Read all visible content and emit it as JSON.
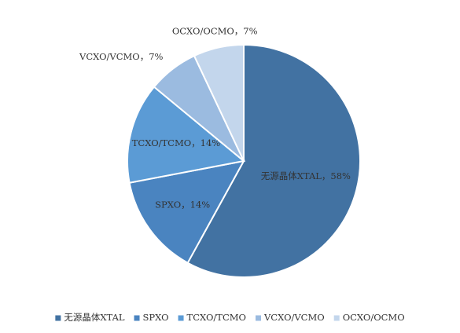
{
  "chart_data": {
    "type": "pie",
    "categories": [
      "无源晶体XTAL",
      "SPXO",
      "TCXO/TCMO",
      "VCXO/VCMO",
      "OCXO/OCMO"
    ],
    "values": [
      58,
      14,
      14,
      7,
      7
    ],
    "value_labels": [
      "无源晶体XTAL，58%",
      "SPXO，14%",
      "TCXO/TCMO，14%",
      "VCXO/VCMO，7%",
      "OCXO/OCMO，7%"
    ],
    "colors": [
      "#4272a2",
      "#4a84c0",
      "#5b9bd5",
      "#9bbbe0",
      "#c3d6ec"
    ],
    "legend": "bottom"
  }
}
